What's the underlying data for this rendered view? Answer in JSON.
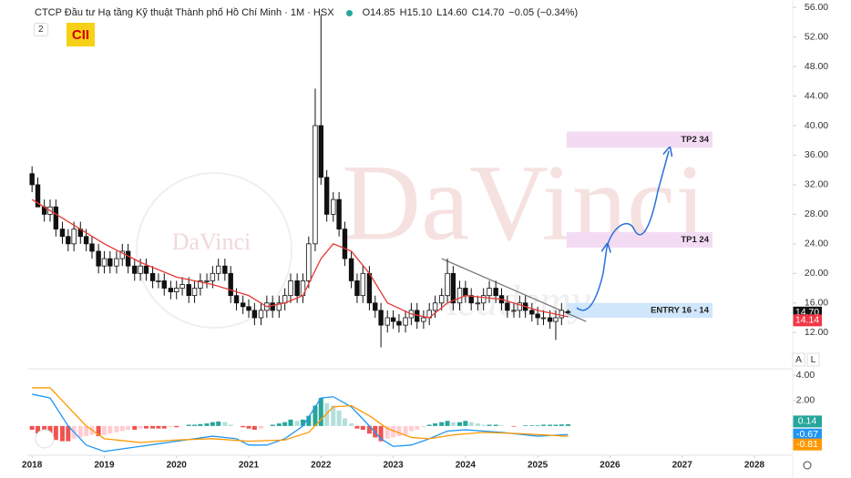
{
  "header": {
    "name": "CTCP Đầu tư Hạ tầng Kỹ thuật Thành phố Hồ Chí Minh · 1M · HSX",
    "readout": [
      "O14.85",
      "H15.10",
      "L14.60",
      "C14.70",
      "−0.05 (−0.34%)"
    ],
    "collapse": "2",
    "symbol": "CII"
  },
  "watermark": {
    "brand": "DaVinci",
    "sub": "Academy"
  },
  "buttons": [
    "A",
    "L"
  ],
  "chart_data": {
    "type": "candlestick",
    "xlim": [
      2017.96,
      2028.53
    ],
    "xticks": [
      2018,
      2019,
      2020,
      2021,
      2022,
      2023,
      2024,
      2025,
      2026,
      2027,
      2028
    ],
    "ylim": [
      7.1,
      57
    ],
    "yticks": [
      {
        "value": 12,
        "label": "12.00"
      },
      {
        "value": 16,
        "label": "16.00"
      },
      {
        "value": 20,
        "label": "20.00"
      },
      {
        "value": 24,
        "label": "24.00"
      },
      {
        "value": 28,
        "label": "28.00"
      },
      {
        "value": 32,
        "label": "32.00"
      },
      {
        "value": 36,
        "label": "36.00"
      },
      {
        "value": 40,
        "label": "40.00"
      },
      {
        "value": 44,
        "label": "44.00"
      },
      {
        "value": 48,
        "label": "48.00"
      },
      {
        "value": 52,
        "label": "52.00"
      },
      {
        "value": 56,
        "label": "56.00"
      }
    ],
    "candles": {
      "up_color": "#ffffff",
      "down_color": "#111111",
      "x": [
        2018,
        2018.08,
        2018.17,
        2018.25,
        2018.33,
        2018.42,
        2018.5,
        2018.58,
        2018.67,
        2018.75,
        2018.83,
        2018.92,
        2019,
        2019.08,
        2019.17,
        2019.25,
        2019.33,
        2019.42,
        2019.5,
        2019.58,
        2019.67,
        2019.75,
        2019.83,
        2019.92,
        2020,
        2020.08,
        2020.17,
        2020.25,
        2020.33,
        2020.42,
        2020.5,
        2020.58,
        2020.67,
        2020.75,
        2020.83,
        2020.92,
        2021,
        2021.08,
        2021.17,
        2021.25,
        2021.33,
        2021.42,
        2021.5,
        2021.58,
        2021.67,
        2021.75,
        2021.83,
        2021.92,
        2022,
        2022.08,
        2022.17,
        2022.25,
        2022.33,
        2022.42,
        2022.5,
        2022.58,
        2022.67,
        2022.75,
        2022.83,
        2022.92,
        2023,
        2023.08,
        2023.17,
        2023.25,
        2023.33,
        2023.42,
        2023.5,
        2023.58,
        2023.67,
        2023.75,
        2023.83,
        2023.92,
        2024,
        2024.08,
        2024.17,
        2024.25,
        2024.33,
        2024.42,
        2024.5,
        2024.58,
        2024.67,
        2024.75,
        2024.83,
        2024.92,
        2025,
        2025.08,
        2025.17,
        2025.25,
        2025.33,
        2025.42
      ],
      "open": [
        33.5,
        32,
        29,
        28,
        29,
        26,
        25,
        24,
        26,
        25,
        24,
        23,
        21,
        22,
        21,
        22,
        23,
        21,
        20,
        21,
        20,
        19,
        19,
        18,
        17.5,
        18,
        18.5,
        17,
        18,
        19,
        19,
        20,
        21,
        20,
        17,
        16,
        15.5,
        15,
        14,
        15,
        16,
        15,
        16,
        17,
        19,
        17,
        19,
        24,
        40,
        33,
        28,
        30,
        26,
        22,
        19,
        17,
        20,
        16,
        15,
        13,
        14,
        13.5,
        13,
        14,
        15,
        13.5,
        14,
        15,
        16,
        17,
        20,
        16,
        18,
        17,
        16,
        16,
        17,
        18,
        17,
        16,
        15,
        15,
        16,
        15,
        14.5,
        14,
        14,
        13.5,
        14,
        14.85
      ],
      "high": [
        34.5,
        33,
        30,
        30,
        30,
        27,
        26,
        27,
        27,
        26,
        25,
        24,
        23,
        23,
        23,
        24,
        24,
        22,
        22,
        22,
        21,
        20,
        20,
        19,
        19,
        19.5,
        19.5,
        19,
        20,
        20,
        21,
        22,
        22,
        21,
        18,
        17,
        16.5,
        16,
        16,
        17,
        17,
        17,
        18,
        20,
        20,
        20,
        25,
        45,
        55,
        34,
        31,
        31,
        27,
        23,
        20,
        21,
        21,
        17,
        16,
        15,
        15,
        14.5,
        15,
        16,
        16,
        15,
        16,
        17,
        18,
        22,
        21,
        19,
        19,
        18,
        17,
        18,
        19,
        19,
        18,
        17,
        16,
        17,
        17,
        16,
        15.5,
        15,
        15,
        15,
        16,
        15.1
      ],
      "low": [
        31,
        31,
        27,
        27,
        25,
        24,
        23,
        23,
        24,
        23,
        22,
        20,
        20,
        20,
        20,
        21,
        20,
        19,
        19,
        19,
        18,
        18,
        17,
        16.5,
        16.5,
        17,
        16,
        16,
        17,
        18,
        18,
        19,
        19,
        16,
        15,
        14.5,
        14,
        13,
        13,
        14,
        14,
        14,
        15,
        16,
        16,
        16,
        18,
        23,
        32,
        27,
        27,
        25,
        21,
        18,
        16,
        16,
        15,
        14,
        10,
        12,
        12.5,
        12,
        12,
        13,
        12.5,
        12.5,
        13,
        14,
        15,
        16,
        15,
        15,
        16,
        15,
        15,
        15,
        16,
        16,
        15,
        14,
        14,
        14,
        14,
        13.5,
        13,
        13,
        12.5,
        11,
        13,
        14.6
      ],
      "close": [
        32,
        29,
        28,
        29,
        26,
        25,
        24,
        26,
        25,
        24,
        23,
        21,
        22,
        21,
        22,
        23,
        21,
        20,
        21,
        20,
        19,
        19,
        18,
        17.5,
        18,
        18.5,
        17,
        18,
        19,
        19,
        20,
        21,
        20,
        17,
        16,
        15.5,
        15,
        14,
        15,
        16,
        15,
        16,
        17,
        19,
        17,
        19,
        24,
        40,
        33,
        28,
        30,
        26,
        22,
        19,
        17,
        20,
        16,
        15,
        13,
        14,
        13.5,
        13,
        14,
        15,
        13.5,
        14,
        15,
        16,
        17,
        20,
        16,
        18,
        17,
        16,
        16,
        17,
        18,
        17,
        16,
        15,
        15,
        16,
        15,
        14.5,
        14,
        14,
        13.5,
        14,
        15,
        14.7
      ],
      "last_close_label": "14.70"
    },
    "ma": {
      "color": "#e53935",
      "x": [
        2018,
        2018.5,
        2019,
        2019.5,
        2020,
        2020.5,
        2021,
        2021.25,
        2021.5,
        2021.75,
        2022,
        2022.17,
        2022.42,
        2022.67,
        2022.92,
        2023.25,
        2023.5,
        2023.75,
        2024,
        2024.5,
        2025,
        2025.42
      ],
      "values": [
        30,
        27,
        24,
        21.5,
        19.5,
        18.5,
        17,
        15.5,
        16,
        17,
        22,
        24,
        23,
        20,
        16,
        14.5,
        14,
        16,
        17,
        16.5,
        15,
        14.14
      ]
    },
    "trendline": {
      "color": "#777777",
      "x": [
        2023.67,
        2025.67
      ],
      "y": [
        22,
        13.5
      ]
    },
    "zones": [
      {
        "label": "TP2 34",
        "x": [
          2025.4,
          2027.42
        ],
        "y": [
          37,
          39.2
        ],
        "color": "#f3dcf3"
      },
      {
        "label": "TP1 24",
        "x": [
          2025.4,
          2027.42
        ],
        "y": [
          23.5,
          25.6
        ],
        "color": "#f3dcf3"
      },
      {
        "label": "ENTRY 16 - 14",
        "x": [
          2025.4,
          2027.42
        ],
        "y": [
          14,
          16
        ],
        "color": "#cfe6fb"
      }
    ],
    "macd": {
      "ylim": [
        -2.3,
        4.5
      ],
      "yticks": [
        {
          "value": 2,
          "label": "2.00"
        },
        {
          "value": 4,
          "label": "4.00"
        }
      ],
      "histogram": [
        -0.3,
        -0.6,
        -0.9,
        -1,
        -1.1,
        -1.2,
        -1.2,
        -1,
        -0.9,
        -0.8,
        -0.7,
        -0.8,
        -0.7,
        -0.6,
        -0.5,
        -0.4,
        -0.3,
        -0.3,
        -0.2,
        -0.2,
        -0.2,
        -0.2,
        -0.2,
        -0.1,
        -0.1,
        0,
        0.1,
        0.1,
        0.15,
        0.2,
        0.3,
        0.35,
        0.3,
        0.1,
        0,
        -0.1,
        -0.2,
        -0.3,
        -0.2,
        0,
        0.1,
        0.2,
        0.3,
        0.5,
        0.4,
        0.5,
        0.8,
        1.6,
        2.2,
        1.8,
        1.6,
        1.2,
        0.6,
        0.2,
        -0.2,
        -0.3,
        -0.6,
        -0.9,
        -1.2,
        -1,
        -0.9,
        -0.8,
        -0.7,
        -0.4,
        -0.3,
        -0.1,
        0.1,
        0.2,
        0.3,
        0.4,
        0.3,
        0.3,
        0.4,
        0.3,
        0.2,
        0.1,
        0.1,
        0.1,
        0.05,
        0,
        -0.05,
        0,
        0.05,
        0.05,
        0.05,
        0.1,
        0.1,
        0.1,
        0.12,
        0.14
      ],
      "colors": {
        "up_rise": "#26a69a",
        "up_fall": "#b2dfdb",
        "down_fall": "#ef5350",
        "down_rise": "#ffcdd2"
      },
      "macd_line": {
        "color": "#2196f3",
        "x": [
          2018,
          2018.25,
          2018.5,
          2018.75,
          2019,
          2019.25,
          2019.5,
          2019.75,
          2020,
          2020.5,
          2020.83,
          2021,
          2021.25,
          2021.5,
          2021.75,
          2022,
          2022.17,
          2022.42,
          2022.67,
          2022.83,
          2023,
          2023.25,
          2023.5,
          2023.75,
          2024,
          2024.5,
          2025,
          2025.42
        ],
        "values": [
          2.5,
          2.2,
          0,
          -1.5,
          -2,
          -1.8,
          -1.6,
          -1.4,
          -1.2,
          -0.8,
          -1,
          -1.5,
          -1.5,
          -1,
          0,
          2.2,
          2.3,
          1.5,
          0,
          -1,
          -1.6,
          -1.5,
          -1,
          -0.4,
          -0.3,
          -0.5,
          -0.8,
          -0.67
        ]
      },
      "signal_line": {
        "color": "#ff9800",
        "x": [
          2018,
          2018.25,
          2018.5,
          2018.75,
          2019,
          2019.5,
          2020,
          2020.5,
          2021,
          2021.5,
          2021.83,
          2022,
          2022.17,
          2022.42,
          2022.67,
          2022.92,
          2023.25,
          2023.5,
          2023.83,
          2024.25,
          2024.75,
          2025.42
        ],
        "values": [
          3,
          3,
          1.5,
          0,
          -1,
          -1.3,
          -1.1,
          -1,
          -1.2,
          -1.1,
          -0.5,
          0.5,
          1.5,
          1.6,
          0.8,
          -0.2,
          -0.9,
          -1,
          -0.7,
          -0.5,
          -0.6,
          -0.81
        ]
      }
    }
  }
}
